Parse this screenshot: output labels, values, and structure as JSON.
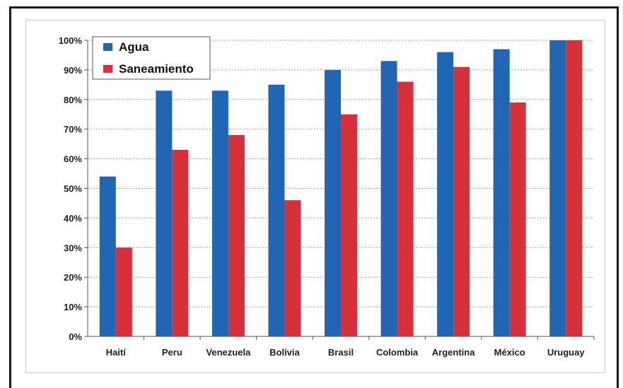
{
  "chart_data": {
    "type": "bar",
    "title": "",
    "xlabel": "",
    "ylabel": "",
    "ylim": [
      0,
      100
    ],
    "y_ticks": [
      "0%",
      "10%",
      "20%",
      "30%",
      "40%",
      "50%",
      "60%",
      "70%",
      "80%",
      "90%",
      "100%"
    ],
    "categories": [
      "Haití",
      "Peru",
      "Venezuela",
      "Bolivia",
      "Brasil",
      "Colombia",
      "Argentina",
      "México",
      "Uruguay"
    ],
    "series": [
      {
        "name": "Agua",
        "color": "#2166b4",
        "values": [
          54,
          83,
          83,
          85,
          90,
          93,
          96,
          97,
          100
        ]
      },
      {
        "name": "Saneamiento",
        "color": "#d6303a",
        "values": [
          30,
          63,
          68,
          46,
          75,
          86,
          91,
          79,
          100
        ]
      }
    ],
    "grid": true,
    "legend": "top-left"
  }
}
